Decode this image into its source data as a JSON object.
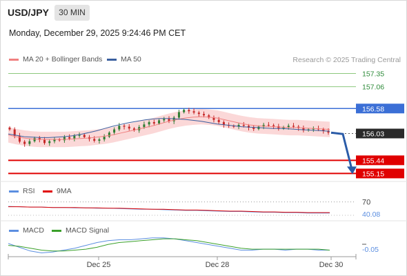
{
  "header": {
    "symbol": "USD/JPY",
    "timeframe": "30 MIN",
    "datetime": "Monday, December 29, 2025 9:24:46 PM CET"
  },
  "legend": {
    "ma20_label": "MA 20 + Bollinger Bands",
    "ma50_label": "MA 50",
    "credit": "Research © 2025 Trading Central",
    "rsi_label": "RSI",
    "rsi_ma_label": "9MA",
    "macd_label": "MACD",
    "macd_signal_label": "MACD Signal"
  },
  "colors": {
    "ma20": "#f08080",
    "ma50": "#3a5f9f",
    "bollinger_fill": "#fbd8d8",
    "bullish": "#2e7d32",
    "bearish": "#c62828",
    "resistance": "#2e8b3a",
    "pivot": "#3b6fd6",
    "support": "#e00000",
    "current": "#222222",
    "arrow": "#2b5ca8"
  },
  "chart_data": [
    {
      "type": "candlestick",
      "title": "USD/JPY",
      "timeframe": "30 MIN",
      "x_ticks": [
        "Dec 25",
        "Dec 28",
        "Dec 30"
      ],
      "y_range": [
        155.05,
        157.45
      ],
      "levels": [
        {
          "role": "resistance",
          "value": 157.35
        },
        {
          "role": "resistance",
          "value": 157.06
        },
        {
          "role": "pivot",
          "value": 156.58
        },
        {
          "role": "current",
          "value": 156.03
        },
        {
          "role": "support",
          "value": 155.44
        },
        {
          "role": "support",
          "value": 155.15
        }
      ],
      "level_labels": [
        "157.35",
        "157.06",
        "156.58",
        "156.03",
        "155.44",
        "155.15"
      ],
      "close_series": [
        156.12,
        155.98,
        155.85,
        155.8,
        155.86,
        155.93,
        155.89,
        155.82,
        155.86,
        155.9,
        155.88,
        155.95,
        155.92,
        155.98,
        156.0,
        155.95,
        155.91,
        155.87,
        155.9,
        155.96,
        156.05,
        156.12,
        156.2,
        156.18,
        156.14,
        156.1,
        156.17,
        156.23,
        156.28,
        156.25,
        156.32,
        156.35,
        156.3,
        156.38,
        156.5,
        156.55,
        156.52,
        156.49,
        156.46,
        156.43,
        156.38,
        156.33,
        156.28,
        156.22,
        156.2,
        156.18,
        156.22,
        156.2,
        156.16,
        156.13,
        156.18,
        156.22,
        156.21,
        156.19,
        156.14,
        156.17,
        156.2,
        156.18,
        156.15,
        156.1,
        156.12,
        156.14,
        156.12,
        156.09,
        156.05
      ],
      "ma20": [
        156.0,
        155.96,
        155.93,
        155.91,
        155.9,
        155.9,
        155.9,
        155.9,
        155.91,
        155.92,
        155.93,
        155.95,
        155.97,
        156.0,
        156.04,
        156.08,
        156.12,
        156.16,
        156.2,
        156.25,
        156.3,
        156.34,
        156.37,
        156.39,
        156.4,
        156.39,
        156.37,
        156.33,
        156.29,
        156.25,
        156.22,
        156.2,
        156.19,
        156.18,
        156.17,
        156.16,
        156.16,
        156.15,
        156.14,
        156.13,
        156.12
      ],
      "ma50": [
        156.02,
        155.99,
        155.96,
        155.95,
        155.94,
        155.94,
        155.95,
        155.96,
        155.98,
        156.01,
        156.05,
        156.09,
        156.14,
        156.19,
        156.23,
        156.27,
        156.3,
        156.33,
        156.35,
        156.36,
        156.36,
        156.35,
        156.34,
        156.32,
        156.3,
        156.27,
        156.24,
        156.22,
        156.2,
        156.18,
        156.17,
        156.16,
        156.15,
        156.14,
        156.14,
        156.13,
        156.12,
        156.11,
        156.1,
        156.09,
        156.08
      ]
    },
    {
      "type": "line",
      "title": "RSI",
      "y_ticks": [
        "70"
      ],
      "last_value": "40.08",
      "series": [
        {
          "name": "RSI",
          "values": [
            58,
            57,
            56,
            56,
            55,
            55,
            54,
            54,
            53,
            53,
            52,
            51,
            50,
            50,
            49,
            48,
            47,
            47,
            46,
            45,
            44,
            44,
            43,
            42,
            42,
            41,
            41,
            40,
            40,
            40
          ]
        },
        {
          "name": "9MA",
          "values": [
            57,
            57,
            56,
            56,
            55,
            55,
            55,
            54,
            54,
            53,
            53,
            52,
            51,
            50,
            50,
            49,
            48,
            48,
            47,
            46,
            45,
            45,
            44,
            43,
            43,
            42,
            42,
            41,
            41,
            41
          ]
        }
      ]
    },
    {
      "type": "line",
      "title": "MACD",
      "last_value": "-0.05",
      "series": [
        {
          "name": "MACD",
          "values": [
            0.02,
            -0.02,
            -0.06,
            -0.08,
            -0.07,
            -0.05,
            -0.03,
            0.0,
            0.03,
            0.05,
            0.06,
            0.06,
            0.07,
            0.08,
            0.08,
            0.07,
            0.05,
            0.03,
            0.01,
            -0.01,
            -0.03,
            -0.05,
            -0.05,
            -0.04,
            -0.04,
            -0.05,
            -0.04,
            -0.04,
            -0.05,
            -0.05
          ]
        },
        {
          "name": "MACD Signal",
          "values": [
            0.0,
            -0.01,
            -0.03,
            -0.05,
            -0.06,
            -0.06,
            -0.05,
            -0.04,
            -0.02,
            0.01,
            0.03,
            0.04,
            0.05,
            0.06,
            0.07,
            0.07,
            0.06,
            0.05,
            0.03,
            0.01,
            -0.01,
            -0.03,
            -0.04,
            -0.04,
            -0.04,
            -0.04,
            -0.04,
            -0.04,
            -0.04,
            -0.05
          ]
        }
      ]
    }
  ]
}
